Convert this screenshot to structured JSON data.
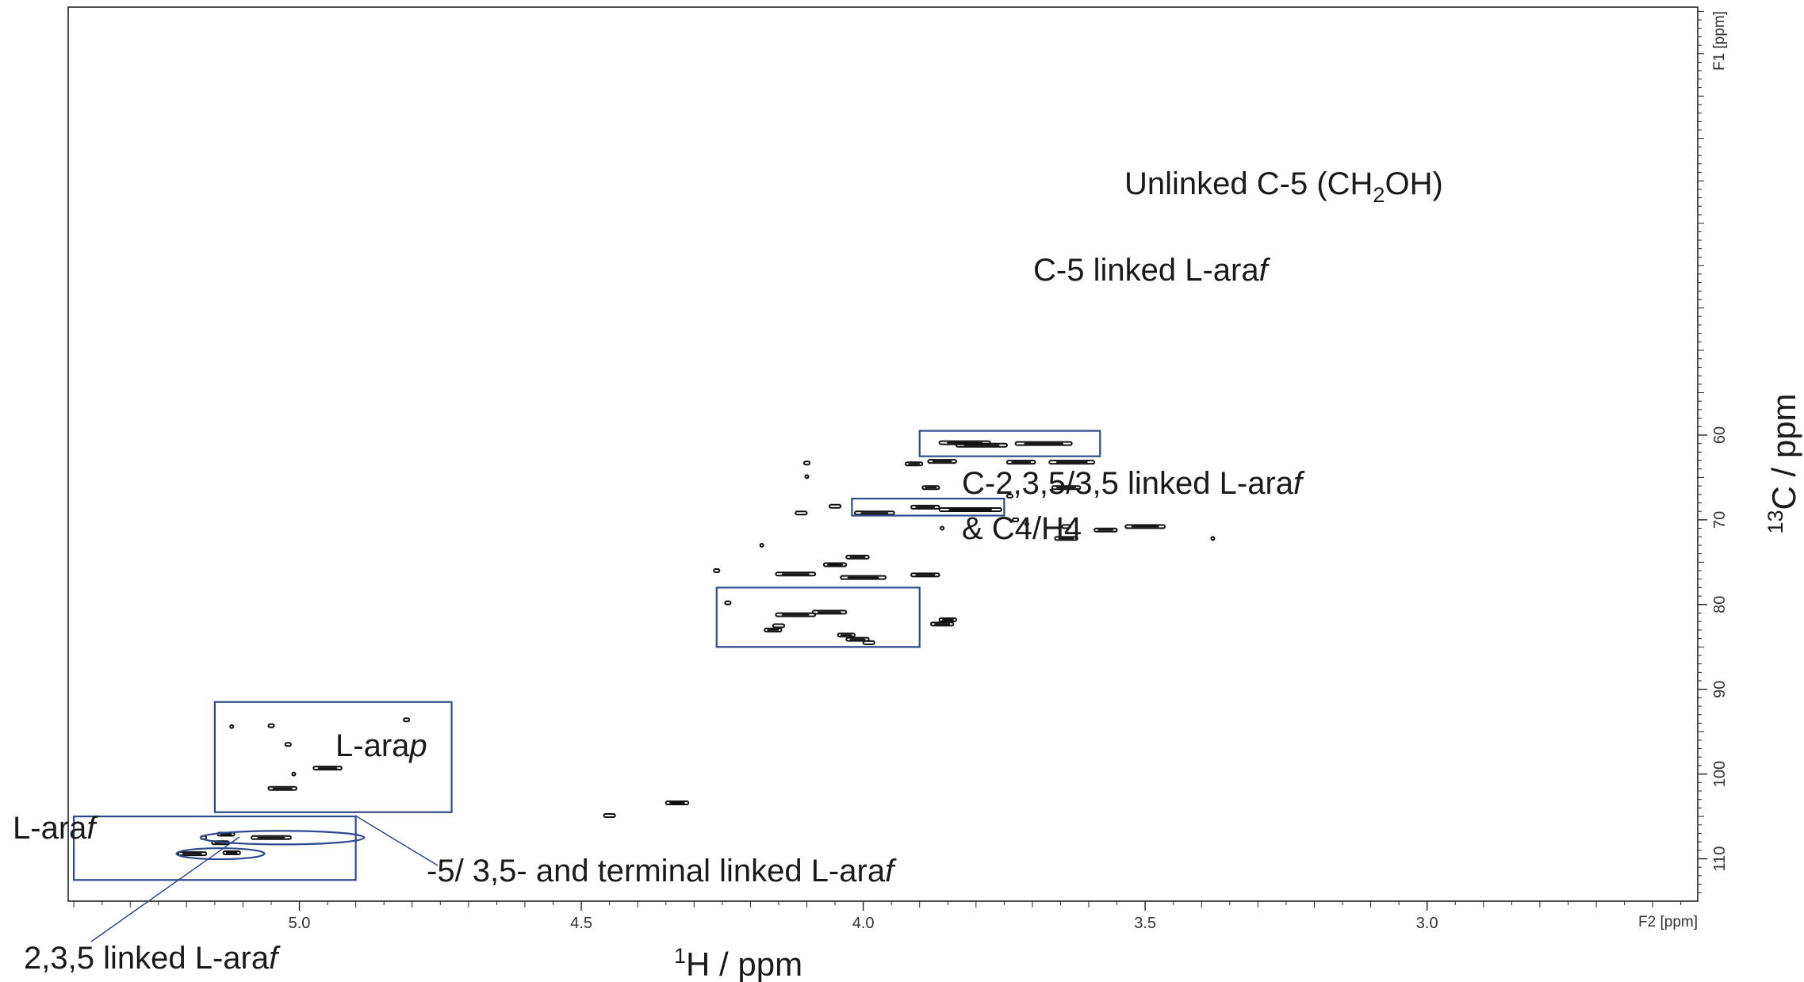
{
  "chart_data": {
    "type": "scatter",
    "title": "",
    "x_axis": {
      "label_sup": "1",
      "label_main": "H / ppm",
      "unit_label": "F2 [ppm]",
      "range": [
        5.41,
        2.52
      ],
      "reversed": true,
      "ticks": [
        5.0,
        4.5,
        4.0,
        3.5,
        3.0
      ],
      "tick_labels": [
        "5.0",
        "4.5",
        "4.0",
        "3.5",
        "3.0"
      ]
    },
    "y_axis": {
      "label_sup": "13",
      "label_main": "C / ppm",
      "unit_label": "F1 [ppm]",
      "range": [
        9.5,
        115
      ],
      "reversed": true,
      "ticks": [
        60,
        70,
        80,
        90,
        100,
        110
      ],
      "tick_labels": [
        "60",
        "70",
        "80",
        "90",
        "100",
        "110"
      ]
    },
    "grid": false,
    "annotations": [
      {
        "text": "Unlinked C-5 (CH",
        "sub": "2",
        "tail": "OH)"
      },
      {
        "text": "C-5 linked L-ara",
        "italic": "f"
      },
      {
        "text": "C-2,3,5/3,5 linked L-ara",
        "italic": "f"
      },
      {
        "text": "& C4/H4"
      },
      {
        "text": "L-ara",
        "italic": "p"
      },
      {
        "text": "L-ara",
        "italic": "f"
      },
      {
        "text": "-5/ 3,5- and terminal linked L-ara",
        "italic": "f"
      },
      {
        "text": "2,3,5 linked L-ara",
        "italic": "f"
      }
    ],
    "regions": [
      {
        "shape": "box",
        "x": [
          3.9,
          3.58
        ],
        "y": [
          59.5,
          62.5
        ]
      },
      {
        "shape": "box",
        "x": [
          4.02,
          3.75
        ],
        "y": [
          67.5,
          69.5
        ]
      },
      {
        "shape": "box",
        "x": [
          4.26,
          3.9
        ],
        "y": [
          78.0,
          85.0
        ]
      },
      {
        "shape": "box",
        "x": [
          5.15,
          4.73
        ],
        "y": [
          91.5,
          104.5
        ]
      },
      {
        "shape": "box",
        "x": [
          5.4,
          4.9
        ],
        "y": [
          105.0,
          112.5
        ]
      },
      {
        "shape": "ellipse",
        "cx": 5.03,
        "cy": 107.5,
        "rx": 0.145,
        "ry": 0.8
      },
      {
        "shape": "ellipse",
        "cx": 5.14,
        "cy": 109.4,
        "rx": 0.078,
        "ry": 0.65
      }
    ],
    "peaks": [
      {
        "x": 3.82,
        "y": 60.9,
        "w": 0.09
      },
      {
        "x": 3.79,
        "y": 61.2,
        "w": 0.09
      },
      {
        "x": 3.68,
        "y": 61.0,
        "w": 0.1
      },
      {
        "x": 3.63,
        "y": 63.2,
        "w": 0.08
      },
      {
        "x": 3.72,
        "y": 63.2,
        "w": 0.05
      },
      {
        "x": 3.86,
        "y": 63.1,
        "w": 0.05
      },
      {
        "x": 3.91,
        "y": 63.4,
        "w": 0.03
      },
      {
        "x": 4.1,
        "y": 63.3,
        "w": 0.01
      },
      {
        "x": 4.1,
        "y": 64.9,
        "w": 0.005
      },
      {
        "x": 3.88,
        "y": 66.2,
        "w": 0.03
      },
      {
        "x": 3.64,
        "y": 66.2,
        "w": 0.05
      },
      {
        "x": 3.74,
        "y": 67.2,
        "w": 0.01
      },
      {
        "x": 3.81,
        "y": 68.8,
        "w": 0.11
      },
      {
        "x": 3.89,
        "y": 68.5,
        "w": 0.05
      },
      {
        "x": 3.98,
        "y": 69.2,
        "w": 0.07
      },
      {
        "x": 4.11,
        "y": 69.2,
        "w": 0.02
      },
      {
        "x": 4.05,
        "y": 68.4,
        "w": 0.02
      },
      {
        "x": 3.73,
        "y": 70.0,
        "w": 0.01
      },
      {
        "x": 3.71,
        "y": 70.5,
        "w": 0.005
      },
      {
        "x": 3.64,
        "y": 70.8,
        "w": 0.015
      },
      {
        "x": 3.57,
        "y": 71.2,
        "w": 0.04
      },
      {
        "x": 3.5,
        "y": 70.8,
        "w": 0.07
      },
      {
        "x": 3.38,
        "y": 72.2,
        "w": 0.005
      },
      {
        "x": 3.64,
        "y": 72.2,
        "w": 0.04
      },
      {
        "x": 3.86,
        "y": 71.0,
        "w": 0.005
      },
      {
        "x": 4.18,
        "y": 73.0,
        "w": 0.005
      },
      {
        "x": 4.01,
        "y": 74.4,
        "w": 0.04
      },
      {
        "x": 4.05,
        "y": 75.3,
        "w": 0.04
      },
      {
        "x": 4.12,
        "y": 76.4,
        "w": 0.07
      },
      {
        "x": 4.0,
        "y": 76.8,
        "w": 0.08
      },
      {
        "x": 3.89,
        "y": 76.5,
        "w": 0.05
      },
      {
        "x": 4.26,
        "y": 76.0,
        "w": 0.01
      },
      {
        "x": 4.24,
        "y": 79.8,
        "w": 0.01
      },
      {
        "x": 4.12,
        "y": 81.2,
        "w": 0.07
      },
      {
        "x": 4.06,
        "y": 80.9,
        "w": 0.06
      },
      {
        "x": 4.15,
        "y": 82.5,
        "w": 0.02
      },
      {
        "x": 4.16,
        "y": 83.0,
        "w": 0.03
      },
      {
        "x": 4.03,
        "y": 83.6,
        "w": 0.03
      },
      {
        "x": 4.01,
        "y": 84.1,
        "w": 0.04
      },
      {
        "x": 3.99,
        "y": 84.5,
        "w": 0.02
      },
      {
        "x": 3.85,
        "y": 81.8,
        "w": 0.03
      },
      {
        "x": 3.86,
        "y": 82.3,
        "w": 0.04
      },
      {
        "x": 5.12,
        "y": 94.4,
        "w": 0.005
      },
      {
        "x": 5.05,
        "y": 94.3,
        "w": 0.01
      },
      {
        "x": 4.81,
        "y": 93.6,
        "w": 0.01
      },
      {
        "x": 5.02,
        "y": 96.5,
        "w": 0.01
      },
      {
        "x": 4.95,
        "y": 99.3,
        "w": 0.05
      },
      {
        "x": 5.01,
        "y": 100.0,
        "w": 0.005
      },
      {
        "x": 5.03,
        "y": 101.7,
        "w": 0.05
      },
      {
        "x": 4.33,
        "y": 103.4,
        "w": 0.04
      },
      {
        "x": 4.45,
        "y": 104.9,
        "w": 0.02
      },
      {
        "x": 5.13,
        "y": 107.1,
        "w": 0.03
      },
      {
        "x": 5.05,
        "y": 107.5,
        "w": 0.07
      },
      {
        "x": 5.17,
        "y": 107.5,
        "w": 0.01
      },
      {
        "x": 5.14,
        "y": 108.1,
        "w": 0.03
      },
      {
        "x": 5.19,
        "y": 109.4,
        "w": 0.05
      },
      {
        "x": 5.12,
        "y": 109.3,
        "w": 0.03
      }
    ]
  }
}
